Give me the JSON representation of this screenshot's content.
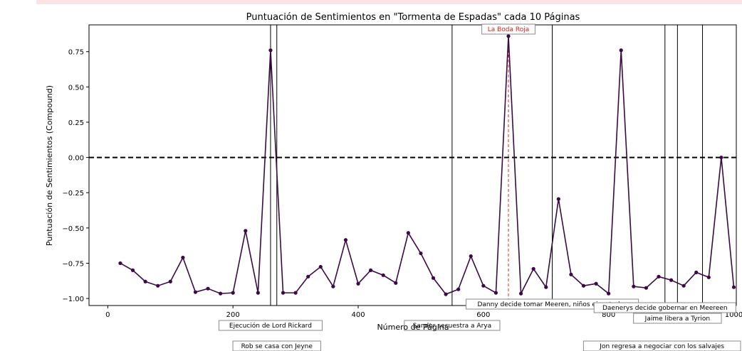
{
  "chart_data": {
    "type": "line",
    "title": "Puntuación de Sentimientos en \"Tormenta de Espadas\" cada 10 Páginas",
    "xlabel": "Número de Página",
    "ylabel": "Puntuación de Sentimientos (Compound)",
    "xlim": [
      -30,
      1004
    ],
    "ylim": [
      -1.05,
      0.94
    ],
    "xticks": [
      0,
      200,
      400,
      600,
      800,
      1000
    ],
    "xtick_labels": [
      "0",
      "200",
      "400",
      "600",
      "800",
      "1000"
    ],
    "yticks": [
      -1.0,
      -0.75,
      -0.5,
      -0.25,
      0.0,
      0.25,
      0.5,
      0.75
    ],
    "ytick_labels": [
      "−1.00",
      "−0.75",
      "−0.50",
      "−0.25",
      "0.00",
      "0.25",
      "0.50",
      "0.75"
    ],
    "grid": false,
    "series": [
      {
        "color": "#3b0a45",
        "x": [
          20,
          40,
          60,
          80,
          100,
          120,
          140,
          160,
          180,
          200,
          220,
          240,
          260,
          280,
          300,
          320,
          340,
          360,
          380,
          400,
          420,
          440,
          460,
          480,
          500,
          520,
          540,
          560,
          580,
          600,
          620,
          640,
          660,
          680,
          700,
          720,
          740,
          760,
          780,
          800,
          820,
          840,
          860,
          880,
          900,
          920,
          940,
          960,
          980,
          1000
        ],
        "y": [
          -0.75,
          -0.8,
          -0.88,
          -0.91,
          -0.88,
          -0.71,
          -0.955,
          -0.93,
          -0.965,
          -0.96,
          -0.52,
          -0.96,
          0.76,
          -0.96,
          -0.96,
          -0.845,
          -0.775,
          -0.915,
          -0.585,
          -0.895,
          -0.8,
          -0.835,
          -0.89,
          -0.535,
          -0.68,
          -0.855,
          -0.97,
          -0.935,
          -0.7,
          -0.91,
          -0.96,
          0.86,
          -0.965,
          -0.79,
          -0.92,
          -0.295,
          -0.83,
          -0.91,
          -0.895,
          -0.965,
          0.76,
          -0.915,
          -0.925,
          -0.845,
          -0.87,
          -0.91,
          -0.815,
          -0.85,
          0.0,
          -0.92
        ]
      }
    ],
    "reference_line": {
      "y": 0.0,
      "style": "dashed",
      "color": "#000000"
    },
    "events": [
      {
        "x": 260,
        "label": "Ejecución de Lord Rickard",
        "color": "#000000",
        "box": "below-axis-1"
      },
      {
        "x": 270,
        "label": "Rob se casa con Jeyne",
        "color": "#000000",
        "box": "below-axis-2"
      },
      {
        "x": 550,
        "label": "Sandor secuestra a Arya",
        "color": "#000000",
        "box": "below-axis-1"
      },
      {
        "x": 640,
        "label": "La Boda Roja",
        "color": "#e8211b",
        "style": "dashed",
        "box": "top"
      },
      {
        "x": 710,
        "label": "Danny decide tomar Meeren, niños ejecutados",
        "color": "#000000",
        "box": "in-axis-bottom"
      },
      {
        "x": 890,
        "label": "Daenerys decide gobernar en Meereen",
        "color": "#000000",
        "box": "in-axis-bottom"
      },
      {
        "x": 910,
        "label": "Jaime libera a Tyrion",
        "color": "#000000",
        "box": "in-axis-bottom"
      },
      {
        "x": 950,
        "label": "Jon regresa a negociar con los salvajes",
        "color": "#000000",
        "box": "below-axis-2"
      }
    ]
  }
}
